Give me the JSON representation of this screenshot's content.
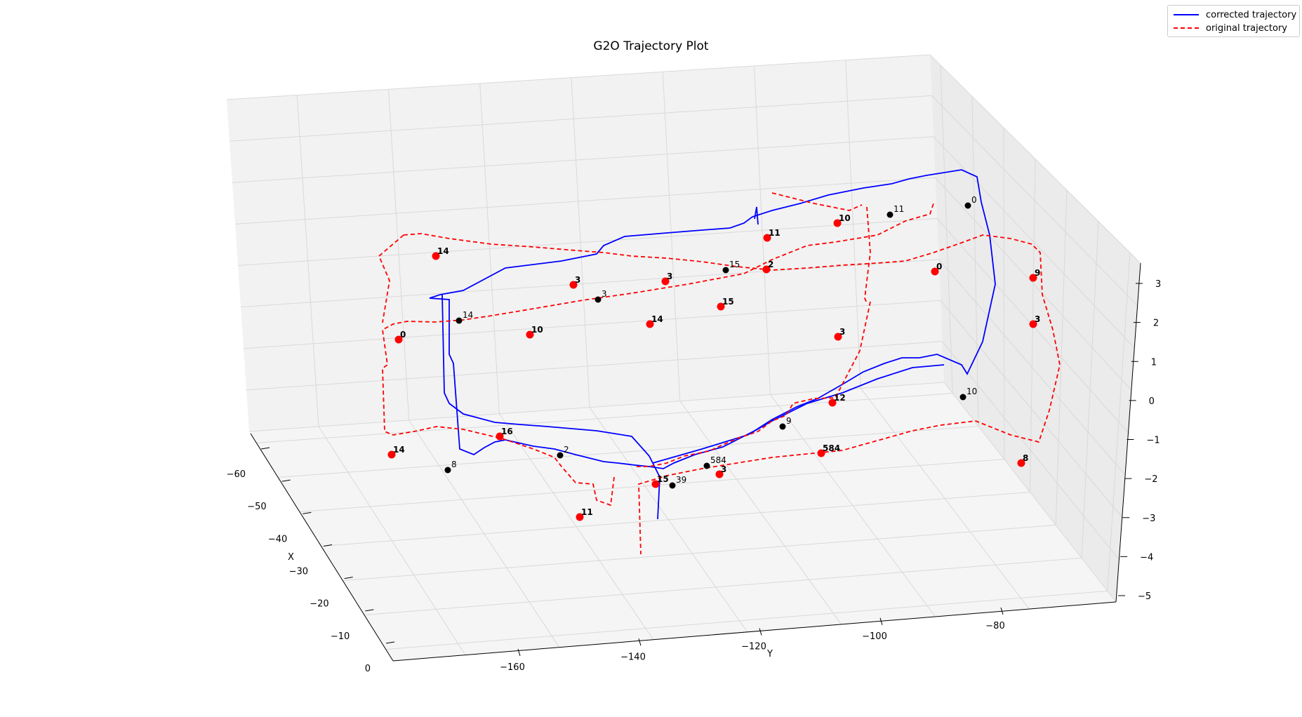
{
  "chart_data": {
    "type": "line",
    "title": "G2O Trajectory Plot",
    "xlabel": "X",
    "ylabel": "Y",
    "zlabel": "",
    "x_ticks": [
      "−60",
      "−50",
      "−40",
      "−30",
      "−20",
      "−10",
      "0"
    ],
    "y_ticks": [
      "−160",
      "−140",
      "−120",
      "−100",
      "−80"
    ],
    "z_ticks": [
      "3",
      "2",
      "1",
      "0",
      "−1",
      "−2",
      "−3",
      "−4",
      "−5"
    ],
    "legend_position": "top-right",
    "series": [
      {
        "name": "corrected trajectory",
        "color": "#0000ff",
        "dash": "solid"
      },
      {
        "name": "original trajectory",
        "color": "#ff0000",
        "dash": "dashed"
      }
    ],
    "node_labels_black": [
      "14",
      "3",
      "15",
      "11",
      "0",
      "10",
      "9",
      "2",
      "8",
      "584",
      "39"
    ],
    "node_labels_red": [
      "14",
      "3",
      "3",
      "15",
      "2",
      "11",
      "0",
      "10",
      "9",
      "12",
      "8",
      "584",
      "16",
      "14",
      "3",
      "15",
      "11",
      "0",
      "10"
    ]
  }
}
